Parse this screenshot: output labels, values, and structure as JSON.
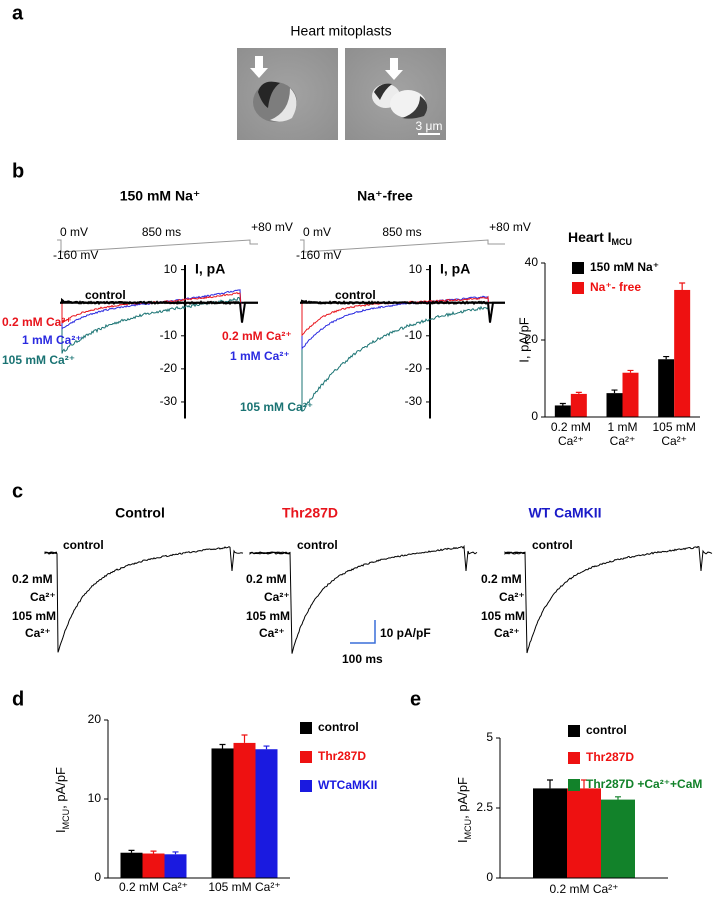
{
  "panel_letters": [
    "a",
    "b",
    "c",
    "d",
    "e"
  ],
  "panel_a": {
    "title": "Heart mitoplasts",
    "scale_bar": "3 μm"
  },
  "panel_b": {
    "ylim": [
      -35,
      12
    ],
    "ticks": [
      10,
      -10,
      -20,
      -30
    ],
    "axis_label": "I, pA",
    "protocol": [
      "0 mV",
      "850 ms",
      "+80 mV",
      "-160 mV"
    ],
    "conditions": [
      {
        "title": "150 mM Na⁺",
        "traces": [
          {
            "name": "control",
            "color": "#000000"
          },
          {
            "name": "0.2 mM Ca²⁺",
            "color": "#e8141c"
          },
          {
            "name": "1 mM  Ca²⁺",
            "color": "#2a2ae0"
          },
          {
            "name": "105 mM Ca²⁺",
            "color": "#1a7373"
          }
        ]
      },
      {
        "title": "Na⁺-free",
        "traces": [
          {
            "name": "control",
            "color": "#000000"
          },
          {
            "name": "0.2 mM Ca²⁺",
            "color": "#e8141c"
          },
          {
            "name": "1 mM  Ca²⁺",
            "color": "#2a2ae0"
          },
          {
            "name": "105 mM  Ca²⁺",
            "color": "#1a7373"
          }
        ]
      }
    ]
  },
  "panel_c": {
    "groups": [
      {
        "title": "Control",
        "color": "#000000"
      },
      {
        "title": "Thr287D",
        "color": "#e8141c"
      },
      {
        "title": "WT CaMKII",
        "color": "#1a1ac8"
      }
    ],
    "trace_labels": [
      "control",
      "0.2 mM",
      "Ca²⁺",
      "105 mM",
      "Ca²⁺"
    ],
    "scale_bar": [
      "10 pA/pF",
      "100 ms"
    ]
  },
  "chart_data": [
    {
      "type": "bar",
      "title": [
        "Heart I",
        "MCU"
      ],
      "ylabel": "I, pA/pF",
      "categories": [
        [
          "0.2 mM",
          "Ca²⁺"
        ],
        [
          "1 mM",
          "Ca²⁺"
        ],
        [
          "105 mM",
          "Ca²⁺"
        ]
      ],
      "series": [
        {
          "name": "150 mM Na⁺",
          "color": "#000000",
          "values": [
            3,
            6.2,
            15
          ],
          "errors": [
            0.5,
            0.8,
            0.7
          ]
        },
        {
          "name": "Na⁺- free",
          "color": "#ee1111",
          "values": [
            6,
            11.5,
            33
          ],
          "errors": [
            0.4,
            0.6,
            1.8
          ]
        }
      ],
      "ylim": [
        0,
        40
      ],
      "yticks": [
        0,
        20,
        40
      ],
      "legend": "top-left"
    },
    {
      "type": "bar",
      "ylabel": [
        "I",
        "MCU",
        ", pA/pF"
      ],
      "categories": [
        "0.2 mM Ca²⁺",
        "105 mM Ca²⁺"
      ],
      "series": [
        {
          "name": "control",
          "color": "#000000",
          "values": [
            3.2,
            16.4
          ],
          "errors": [
            0.3,
            0.5
          ]
        },
        {
          "name": "Thr287D",
          "color": "#ee1111",
          "values": [
            3.1,
            17.1
          ],
          "errors": [
            0.3,
            1.0
          ]
        },
        {
          "name": "WTCaMKII",
          "color": "#1a1ae0",
          "values": [
            3.0,
            16.3
          ],
          "errors": [
            0.3,
            0.4
          ]
        }
      ],
      "ylim": [
        0,
        20
      ],
      "yticks": [
        0,
        10,
        20
      ],
      "legend": "right"
    },
    {
      "type": "bar",
      "ylabel": [
        "I",
        "MCU",
        ", pA/pF"
      ],
      "categories": [
        "0.2 mM Ca²⁺"
      ],
      "series": [
        {
          "name": "control",
          "color": "#000000",
          "values": [
            3.2
          ],
          "errors": [
            0.3
          ]
        },
        {
          "name": "Thr287D",
          "color": "#ee1111",
          "values": [
            3.2
          ],
          "errors": [
            0.3
          ]
        },
        {
          "name": "Thr287D +Ca²⁺+CaM",
          "color": "#12822a",
          "values": [
            2.8
          ],
          "errors": [
            0.1
          ]
        }
      ],
      "ylim": [
        0,
        5
      ],
      "yticks": [
        0,
        2.5,
        5
      ],
      "legend": "top-right"
    }
  ]
}
